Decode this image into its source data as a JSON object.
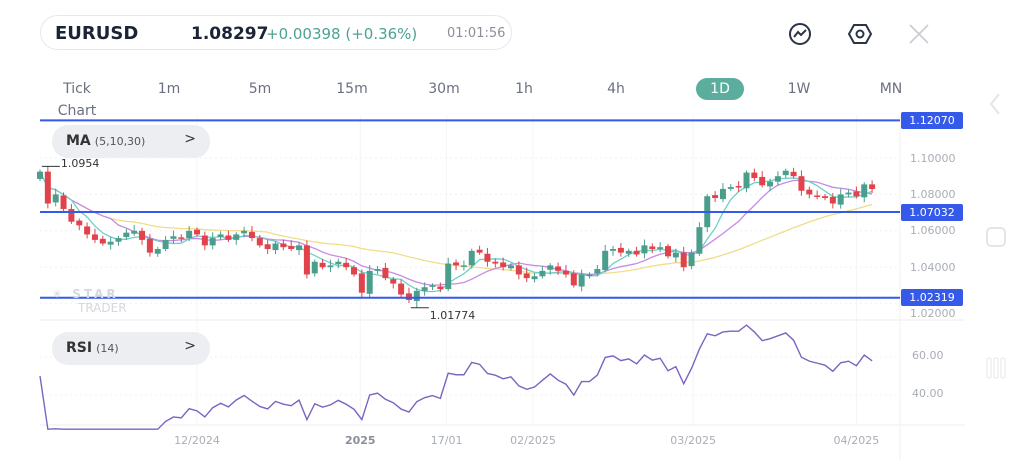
{
  "header": {
    "symbol": "EURUSD",
    "price": "1.08297",
    "change": "+0.00398 (+0.36%)",
    "time": "01:01:56"
  },
  "toolbar_icons": [
    "chart-indicator-icon",
    "settings-hex-icon",
    "close-icon"
  ],
  "timeframes": [
    {
      "label": "Tick Chart"
    },
    {
      "label": "1m"
    },
    {
      "label": "5m"
    },
    {
      "label": "15m"
    },
    {
      "label": "30m"
    },
    {
      "label": "1h"
    },
    {
      "label": "4h"
    },
    {
      "label": "1D",
      "active": true
    },
    {
      "label": "1W"
    },
    {
      "label": "MN"
    }
  ],
  "colors": {
    "up": "#4c9e8c",
    "down": "#e0434b",
    "ma5": "#6dd0c9",
    "ma10": "#c78be6",
    "ma30": "#f0dc8a",
    "level": "#3559e8",
    "rsi": "#7c63c0",
    "active_tab": "#5bae9d"
  },
  "main": {
    "indicator": {
      "name": "MA",
      "params": "(5,10,30)"
    },
    "watermark": {
      "line1": "STAR",
      "line2": "TRADER"
    },
    "price_ticks": [
      "1.10000",
      "1.08000",
      "1.06000",
      "1.04000",
      "1.02000"
    ],
    "levels": [
      "1.12070",
      "1.07032",
      "1.02319"
    ],
    "high_label": "1.0954",
    "low_label": "1.01774"
  },
  "rsi": {
    "name": "RSI",
    "params": "(14)",
    "ticks": [
      "60.00",
      "40.00"
    ]
  },
  "chart_data": {
    "type": "candlestick",
    "closes": [
      1.0925,
      1.075,
      1.08,
      1.072,
      1.065,
      1.063,
      1.058,
      1.055,
      1.053,
      1.054,
      1.056,
      1.059,
      1.06,
      1.055,
      1.048,
      1.05,
      1.055,
      1.057,
      1.056,
      1.06,
      1.058,
      1.052,
      1.056,
      1.058,
      1.055,
      1.058,
      1.06,
      1.056,
      1.052,
      1.05,
      1.053,
      1.051,
      1.05,
      1.052,
      1.036,
      1.043,
      1.04,
      1.041,
      1.043,
      1.04,
      1.036,
      1.026,
      1.038,
      1.039,
      1.034,
      1.031,
      1.025,
      1.022,
      1.027,
      1.029,
      1.03,
      1.028,
      1.042,
      1.041,
      1.041,
      1.049,
      1.048,
      1.043,
      1.042,
      1.04,
      1.041,
      1.036,
      1.034,
      1.035,
      1.038,
      1.041,
      1.038,
      1.036,
      1.03,
      1.036,
      1.036,
      1.039,
      1.049,
      1.05,
      1.048,
      1.049,
      1.047,
      1.052,
      1.05,
      1.051,
      1.046,
      1.048,
      1.04,
      1.048,
      1.062,
      1.079,
      1.078,
      1.083,
      1.084,
      1.084,
      1.092,
      1.089,
      1.085,
      1.087,
      1.09,
      1.093,
      1.09,
      1.082,
      1.08,
      1.079,
      1.078,
      1.075,
      1.08,
      1.081,
      1.079,
      1.0855,
      1.08297
    ],
    "high": 1.0954,
    "low": 1.01774,
    "ylim": [
      1.015,
      1.125
    ],
    "rsi_ylim": [
      20,
      80
    ],
    "x_ticks": [
      {
        "label": "12/2024",
        "at": 20
      },
      {
        "label": "2025",
        "at": 40.8,
        "bold": true
      },
      {
        "label": "17/01",
        "at": 51.8
      },
      {
        "label": "02/2025",
        "at": 62.8
      },
      {
        "label": "03/2025",
        "at": 83.2
      },
      {
        "label": "04/2025",
        "at": 104
      }
    ],
    "moving_averages": [
      5,
      10,
      30
    ],
    "rsi_period": 14
  }
}
